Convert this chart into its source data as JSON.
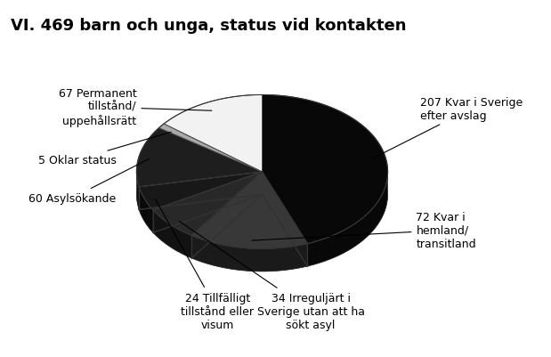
{
  "title": "VI. 469 barn och unga, status vid kontakten",
  "slices": [
    {
      "value": 207,
      "label": "207 Kvar i Sverige\nefter avslag",
      "color": "#080808",
      "depth_color": "#080808"
    },
    {
      "value": 72,
      "label": "72 Kvar i\nhemland/\ntransitland",
      "color": "#383838",
      "depth_color": "#1a1a1a"
    },
    {
      "value": 34,
      "label": "34 Irreguljärt i\nSverige utan att ha\nsökt asyl",
      "color": "#282828",
      "depth_color": "#121212"
    },
    {
      "value": 24,
      "label": "24 Tillfälligt\ntillstånd eller\nvisum",
      "color": "#181818",
      "depth_color": "#0a0a0a"
    },
    {
      "value": 60,
      "label": "60 Asylsökande",
      "color": "#1e1e1e",
      "depth_color": "#0e0e0e"
    },
    {
      "value": 5,
      "label": "5 Oklar status",
      "color": "#aaaaaa",
      "depth_color": "#666666"
    },
    {
      "value": 67,
      "label": "67 Permanent\ntillstånd/\nuppehållsrätt",
      "color": "#f2f2f2",
      "depth_color": "#999999"
    }
  ],
  "background_color": "#ffffff",
  "title_fontsize": 13,
  "label_fontsize": 9
}
